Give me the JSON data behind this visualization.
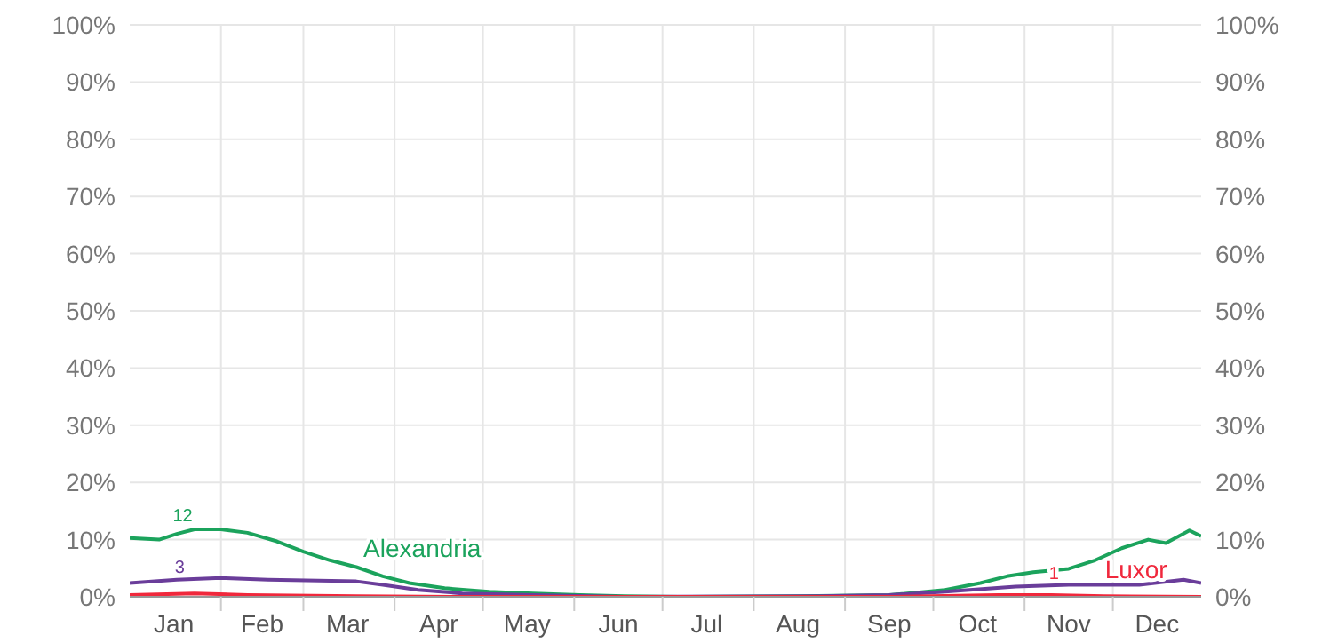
{
  "chart_data": {
    "type": "line",
    "xlim": [
      "--01-01",
      "--12-31"
    ],
    "xticks": [
      {
        "value": "--01-16",
        "label": "Jan"
      },
      {
        "value": "--02-01",
        "label": null
      },
      {
        "value": "--02-15",
        "label": "Feb"
      },
      {
        "value": "--03-01",
        "label": null
      },
      {
        "value": "--03-16",
        "label": "Mar"
      },
      {
        "value": "--04-01",
        "label": null
      },
      {
        "value": "--04-16",
        "label": "Apr"
      },
      {
        "value": "--05-01",
        "label": null
      },
      {
        "value": "--05-16",
        "label": "May"
      },
      {
        "value": "--06-01",
        "label": null
      },
      {
        "value": "--06-16",
        "label": "Jun"
      },
      {
        "value": "--07-01",
        "label": null
      },
      {
        "value": "--07-16",
        "label": "Jul"
      },
      {
        "value": "--08-01",
        "label": null
      },
      {
        "value": "--08-16",
        "label": "Aug"
      },
      {
        "value": "--09-01",
        "label": null
      },
      {
        "value": "--09-16",
        "label": "Sep"
      },
      {
        "value": "--10-01",
        "label": null
      },
      {
        "value": "--10-16",
        "label": "Oct"
      },
      {
        "value": "--11-01",
        "label": null
      },
      {
        "value": "--11-16",
        "label": "Nov"
      },
      {
        "value": "--12-01",
        "label": null
      },
      {
        "value": "--12-16",
        "label": "Dec"
      }
    ],
    "ylim": [
      0,
      100
    ],
    "yticks": [
      {
        "value": 0,
        "label": "0%"
      },
      {
        "value": 10,
        "label": "10%"
      },
      {
        "value": 20,
        "label": "20%"
      },
      {
        "value": 30,
        "label": "30%"
      },
      {
        "value": 40,
        "label": "40%"
      },
      {
        "value": 50,
        "label": "50%"
      },
      {
        "value": 60,
        "label": "60%"
      },
      {
        "value": 70,
        "label": "70%"
      },
      {
        "value": 80,
        "label": "80%"
      },
      {
        "value": 90,
        "label": "90%"
      },
      {
        "value": 100,
        "label": "100%"
      }
    ],
    "y2lim": [
      0,
      100
    ],
    "y2ticks": [
      {
        "value": 0,
        "label": "0%"
      },
      {
        "value": 10,
        "label": "10%"
      },
      {
        "value": 20,
        "label": "20%"
      },
      {
        "value": 30,
        "label": "30%"
      },
      {
        "value": 40,
        "label": "40%"
      },
      {
        "value": 50,
        "label": "50%"
      },
      {
        "value": 60,
        "label": "60%"
      },
      {
        "value": 70,
        "label": "70%"
      },
      {
        "value": 80,
        "label": "80%"
      },
      {
        "value": 90,
        "label": "90%"
      },
      {
        "value": 100,
        "label": "100%"
      }
    ],
    "grid": true,
    "marker": "none",
    "series": [
      {
        "name": "Alexandria",
        "color": "#1ba35c",
        "x": [
          "--01-01",
          "--01-11",
          "--01-17",
          "--01-23",
          "--02-01",
          "--02-10",
          "--02-20",
          "--03-01",
          "--03-10",
          "--03-19",
          "--03-28",
          "--04-06",
          "--04-18",
          "--05-03",
          "--05-18",
          "--06-03",
          "--06-18",
          "--07-10",
          "--08-17",
          "--09-16",
          "--10-05",
          "--10-17",
          "--10-26",
          "--11-04",
          "--11-16",
          "--11-25",
          "--12-04",
          "--12-13",
          "--12-19",
          "--12-27",
          "--12-31"
        ],
        "values": [
          10.3,
          10,
          11,
          11.8,
          11.8,
          11.2,
          9.7,
          7.9,
          6.4,
          5.2,
          3.6,
          2.4,
          1.5,
          0.9,
          0.6,
          0.3,
          0.1,
          0,
          0.1,
          0.3,
          1.2,
          2.4,
          3.6,
          4.3,
          4.9,
          6.4,
          8.5,
          10,
          9.4,
          11.6,
          10.6
        ]
      },
      {
        "color": "#6a3d9a",
        "x": [
          "--01-01",
          "--01-17",
          "--02-01",
          "--02-17",
          "--03-19",
          "--03-28",
          "--04-09",
          "--04-24",
          "--05-18",
          "--06-18",
          "--08-23",
          "--09-16",
          "--10-05",
          "--10-29",
          "--11-16",
          "--12-10",
          "--12-25",
          "--12-31"
        ],
        "values": [
          2.4,
          3,
          3.3,
          3,
          2.7,
          2.1,
          1.2,
          0.6,
          0.3,
          0,
          0.1,
          0.3,
          0.9,
          1.8,
          2.1,
          2.1,
          3,
          2.4
        ]
      },
      {
        "name": "Luxor",
        "color": "#f0283c",
        "x": [
          "--01-01",
          "--01-23",
          "--02-10",
          "--03-19",
          "--04-21",
          "--09-18",
          "--10-23",
          "--11-10",
          "--11-28",
          "--12-31"
        ],
        "values": [
          0.3,
          0.6,
          0.3,
          0.1,
          0,
          0,
          0.3,
          0.3,
          0.1,
          0
        ]
      }
    ],
    "annotations": [
      {
        "text": "12",
        "x": "--01-19",
        "y": 12
      },
      {
        "text": "3",
        "x": "--01-18",
        "y": 3
      },
      {
        "text": "1",
        "x": "--11-11",
        "y": 1.9
      }
    ]
  }
}
